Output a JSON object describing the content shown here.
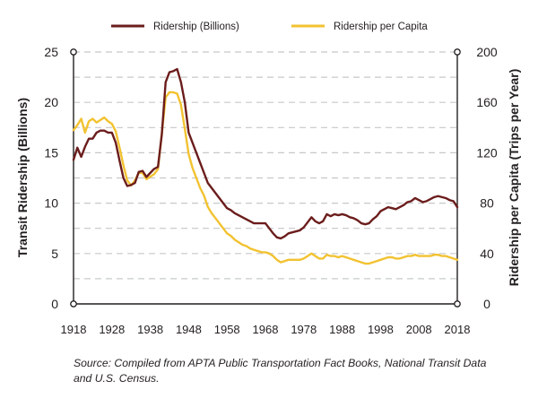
{
  "chart_data": {
    "type": "line",
    "title": "",
    "xlabel": "",
    "ylabel": "Transit Ridership (Billions)",
    "y2label": "Ridership per Capita (Trips per Year)",
    "xlim": [
      1918,
      2018
    ],
    "ylim": [
      0,
      25
    ],
    "y2lim": [
      0,
      200
    ],
    "x_ticks": [
      1918,
      1928,
      1938,
      1948,
      1958,
      1968,
      1978,
      1988,
      1998,
      2008,
      2018
    ],
    "y_ticks": [
      0,
      5,
      10,
      15,
      20,
      25
    ],
    "y2_ticks": [
      0,
      40,
      80,
      120,
      160,
      200
    ],
    "grid": "horizontal dashed",
    "legend_position": "top",
    "series": [
      {
        "name": "Ridership (Billions)",
        "axis": "left",
        "color": "#6b1d1c",
        "x": [
          1918,
          1919,
          1920,
          1921,
          1922,
          1923,
          1924,
          1925,
          1926,
          1927,
          1928,
          1929,
          1930,
          1931,
          1932,
          1933,
          1934,
          1935,
          1936,
          1937,
          1938,
          1939,
          1940,
          1941,
          1942,
          1943,
          1944,
          1945,
          1946,
          1947,
          1948,
          1949,
          1950,
          1951,
          1952,
          1953,
          1954,
          1955,
          1956,
          1957,
          1958,
          1959,
          1960,
          1961,
          1962,
          1963,
          1964,
          1965,
          1966,
          1967,
          1968,
          1969,
          1970,
          1971,
          1972,
          1973,
          1974,
          1975,
          1976,
          1977,
          1978,
          1979,
          1980,
          1981,
          1982,
          1983,
          1984,
          1985,
          1986,
          1987,
          1988,
          1989,
          1990,
          1991,
          1992,
          1993,
          1994,
          1995,
          1996,
          1997,
          1998,
          1999,
          2000,
          2001,
          2002,
          2003,
          2004,
          2005,
          2006,
          2007,
          2008,
          2009,
          2010,
          2011,
          2012,
          2013,
          2014,
          2015,
          2016,
          2017,
          2018
        ],
        "values": [
          14.3,
          15.5,
          14.6,
          15.6,
          16.4,
          16.4,
          17.0,
          17.2,
          17.2,
          17.0,
          17.0,
          16.0,
          14.2,
          12.5,
          11.7,
          11.8,
          12.0,
          13.1,
          13.2,
          12.6,
          13.0,
          13.4,
          13.6,
          16.8,
          22.0,
          23.0,
          23.1,
          23.3,
          22.0,
          20.0,
          17.0,
          16.0,
          15.0,
          14.0,
          13.0,
          12.0,
          11.5,
          11.0,
          10.5,
          10.0,
          9.5,
          9.3,
          9.0,
          8.8,
          8.6,
          8.4,
          8.2,
          8.0,
          8.0,
          8.0,
          8.0,
          7.5,
          7.0,
          6.6,
          6.5,
          6.7,
          7.0,
          7.1,
          7.2,
          7.3,
          7.6,
          8.1,
          8.6,
          8.2,
          8.0,
          8.2,
          8.9,
          8.7,
          8.9,
          8.8,
          8.9,
          8.8,
          8.6,
          8.5,
          8.3,
          8.0,
          7.9,
          8.0,
          8.4,
          8.7,
          9.2,
          9.4,
          9.6,
          9.5,
          9.4,
          9.6,
          9.8,
          10.1,
          10.2,
          10.5,
          10.3,
          10.1,
          10.2,
          10.4,
          10.6,
          10.7,
          10.6,
          10.5,
          10.3,
          10.2,
          9.6
        ]
      },
      {
        "name": "Ridership per Capita",
        "axis": "right",
        "color": "#f2c230",
        "x": [
          1918,
          1919,
          1920,
          1921,
          1922,
          1923,
          1924,
          1925,
          1926,
          1927,
          1928,
          1929,
          1930,
          1931,
          1932,
          1933,
          1934,
          1935,
          1936,
          1937,
          1938,
          1939,
          1940,
          1941,
          1942,
          1943,
          1944,
          1945,
          1946,
          1947,
          1948,
          1949,
          1950,
          1951,
          1952,
          1953,
          1954,
          1955,
          1956,
          1957,
          1958,
          1959,
          1960,
          1961,
          1962,
          1963,
          1964,
          1965,
          1966,
          1967,
          1968,
          1969,
          1970,
          1971,
          1972,
          1973,
          1974,
          1975,
          1976,
          1977,
          1978,
          1979,
          1980,
          1981,
          1982,
          1983,
          1984,
          1985,
          1986,
          1987,
          1988,
          1989,
          1990,
          1991,
          1992,
          1993,
          1994,
          1995,
          1996,
          1997,
          1998,
          1999,
          2000,
          2001,
          2002,
          2003,
          2004,
          2005,
          2006,
          2007,
          2008,
          2009,
          2010,
          2011,
          2012,
          2013,
          2014,
          2015,
          2016,
          2017,
          2018
        ],
        "values": [
          138,
          142,
          147,
          136,
          145,
          147,
          144,
          146,
          148,
          145,
          143,
          137,
          124,
          110,
          98,
          94,
          98,
          104,
          104,
          99,
          101,
          103,
          107,
          135,
          164,
          168,
          168,
          167,
          158,
          139,
          119,
          108,
          100,
          92,
          86,
          77,
          72,
          68,
          64,
          60,
          56,
          54,
          51,
          49,
          47,
          46,
          44,
          43,
          42,
          41,
          41,
          40,
          38,
          35,
          33,
          34,
          35,
          35,
          35,
          35,
          36,
          38,
          40,
          38,
          36,
          36,
          39,
          38,
          38,
          37,
          38,
          37,
          36,
          35,
          34,
          33,
          32,
          32,
          33,
          34,
          35,
          36,
          37,
          37,
          36,
          36,
          37,
          38,
          38,
          39,
          38,
          38,
          38,
          38,
          39,
          39,
          38,
          38,
          37,
          36,
          35
        ]
      }
    ]
  },
  "source_note": "Source: Compiled from APTA Public Transportation Fact Books, National Transit Data and U.S. Census."
}
